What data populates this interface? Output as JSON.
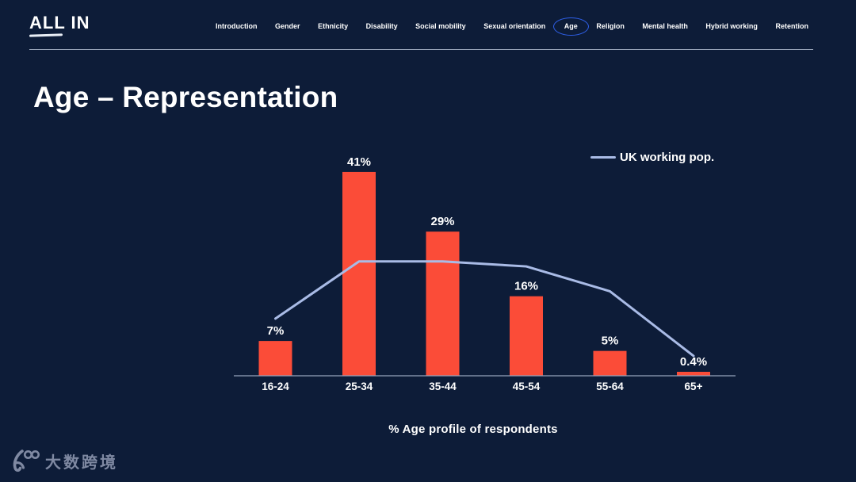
{
  "brand": {
    "logo_text": "ALL IN"
  },
  "nav": {
    "items": [
      {
        "label": "Introduction",
        "active": false
      },
      {
        "label": "Gender",
        "active": false
      },
      {
        "label": "Ethnicity",
        "active": false
      },
      {
        "label": "Disability",
        "active": false
      },
      {
        "label": "Social mobility",
        "active": false
      },
      {
        "label": "Sexual orientation",
        "active": false
      },
      {
        "label": "Age",
        "active": true
      },
      {
        "label": "Religion",
        "active": false
      },
      {
        "label": "Mental health",
        "active": false
      },
      {
        "label": "Hybrid working",
        "active": false
      },
      {
        "label": "Retention",
        "active": false
      }
    ],
    "active_outline_color": "#2e5fe8"
  },
  "page": {
    "title": "Age – Representation"
  },
  "chart_data": {
    "type": "bar",
    "title": "Age – Representation",
    "categories": [
      "16-24",
      "25-34",
      "35-44",
      "45-54",
      "55-64",
      "65+"
    ],
    "series": [
      {
        "name": "% Age profile of respondents",
        "type": "bar",
        "values": [
          7,
          41,
          29,
          16,
          5,
          0.4
        ],
        "labels": [
          "7%",
          "41%",
          "29%",
          "16%",
          "5%",
          "0.4%"
        ],
        "color": "#fb4c38"
      },
      {
        "name": "UK working pop.",
        "type": "line",
        "values": [
          11.5,
          23,
          23,
          22,
          17,
          4
        ],
        "color": "#a9bbe6"
      }
    ],
    "legend": [
      {
        "label": "UK working pop.",
        "color": "#a9bbe6"
      }
    ],
    "legend_position": "top-right",
    "xlabel": "% Age profile of respondents",
    "ylabel": "",
    "ylim": [
      0,
      46
    ],
    "grid": false,
    "axis_color": "#96a3ba",
    "background": "#0d1c38"
  },
  "watermark": {
    "text": "大数跨境",
    "glyph": "100-script-logo"
  }
}
